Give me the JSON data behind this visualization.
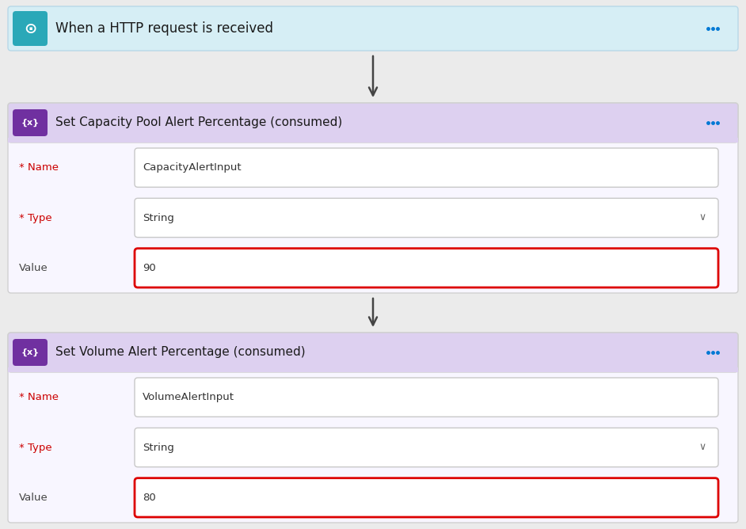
{
  "bg_color": "#ebebeb",
  "top_bar": {
    "bg_color": "#d6eef5",
    "border_color": "#b8d8e8",
    "icon_bg": "#2aa8b8",
    "text": "When a HTTP request is received",
    "text_color": "#1a1a1a",
    "dots_color": "#0078d4"
  },
  "block1": {
    "header_bg": "#ddd0f0",
    "body_bg": "#f8f6ff",
    "border_color": "#d0d0d0",
    "icon_bg": "#7030a0",
    "title": "Set Capacity Pool Alert Percentage (consumed)",
    "title_color": "#1a1a1a",
    "dots_color": "#0078d4",
    "fields": [
      {
        "label": "* Name",
        "value": "CapacityAlertInput",
        "red_border": false,
        "dropdown": false
      },
      {
        "label": "* Type",
        "value": "String",
        "red_border": false,
        "dropdown": true
      },
      {
        "label": "Value",
        "value": "90",
        "red_border": true,
        "dropdown": false
      }
    ]
  },
  "block2": {
    "header_bg": "#ddd0f0",
    "body_bg": "#f8f6ff",
    "border_color": "#d0d0d0",
    "icon_bg": "#7030a0",
    "title": "Set Volume Alert Percentage (consumed)",
    "title_color": "#1a1a1a",
    "dots_color": "#0078d4",
    "fields": [
      {
        "label": "* Name",
        "value": "VolumeAlertInput",
        "red_border": false,
        "dropdown": false
      },
      {
        "label": "* Type",
        "value": "String",
        "red_border": false,
        "dropdown": true
      },
      {
        "label": "Value",
        "value": "80",
        "red_border": true,
        "dropdown": false
      }
    ]
  },
  "arrow_color": "#444444",
  "star_label_color": "#cc0000",
  "plain_label_color": "#444444",
  "field_bg": "#ffffff",
  "field_border": "#c8c8c8",
  "red_border_color": "#dd0000",
  "dropdown_arrow": "∨"
}
